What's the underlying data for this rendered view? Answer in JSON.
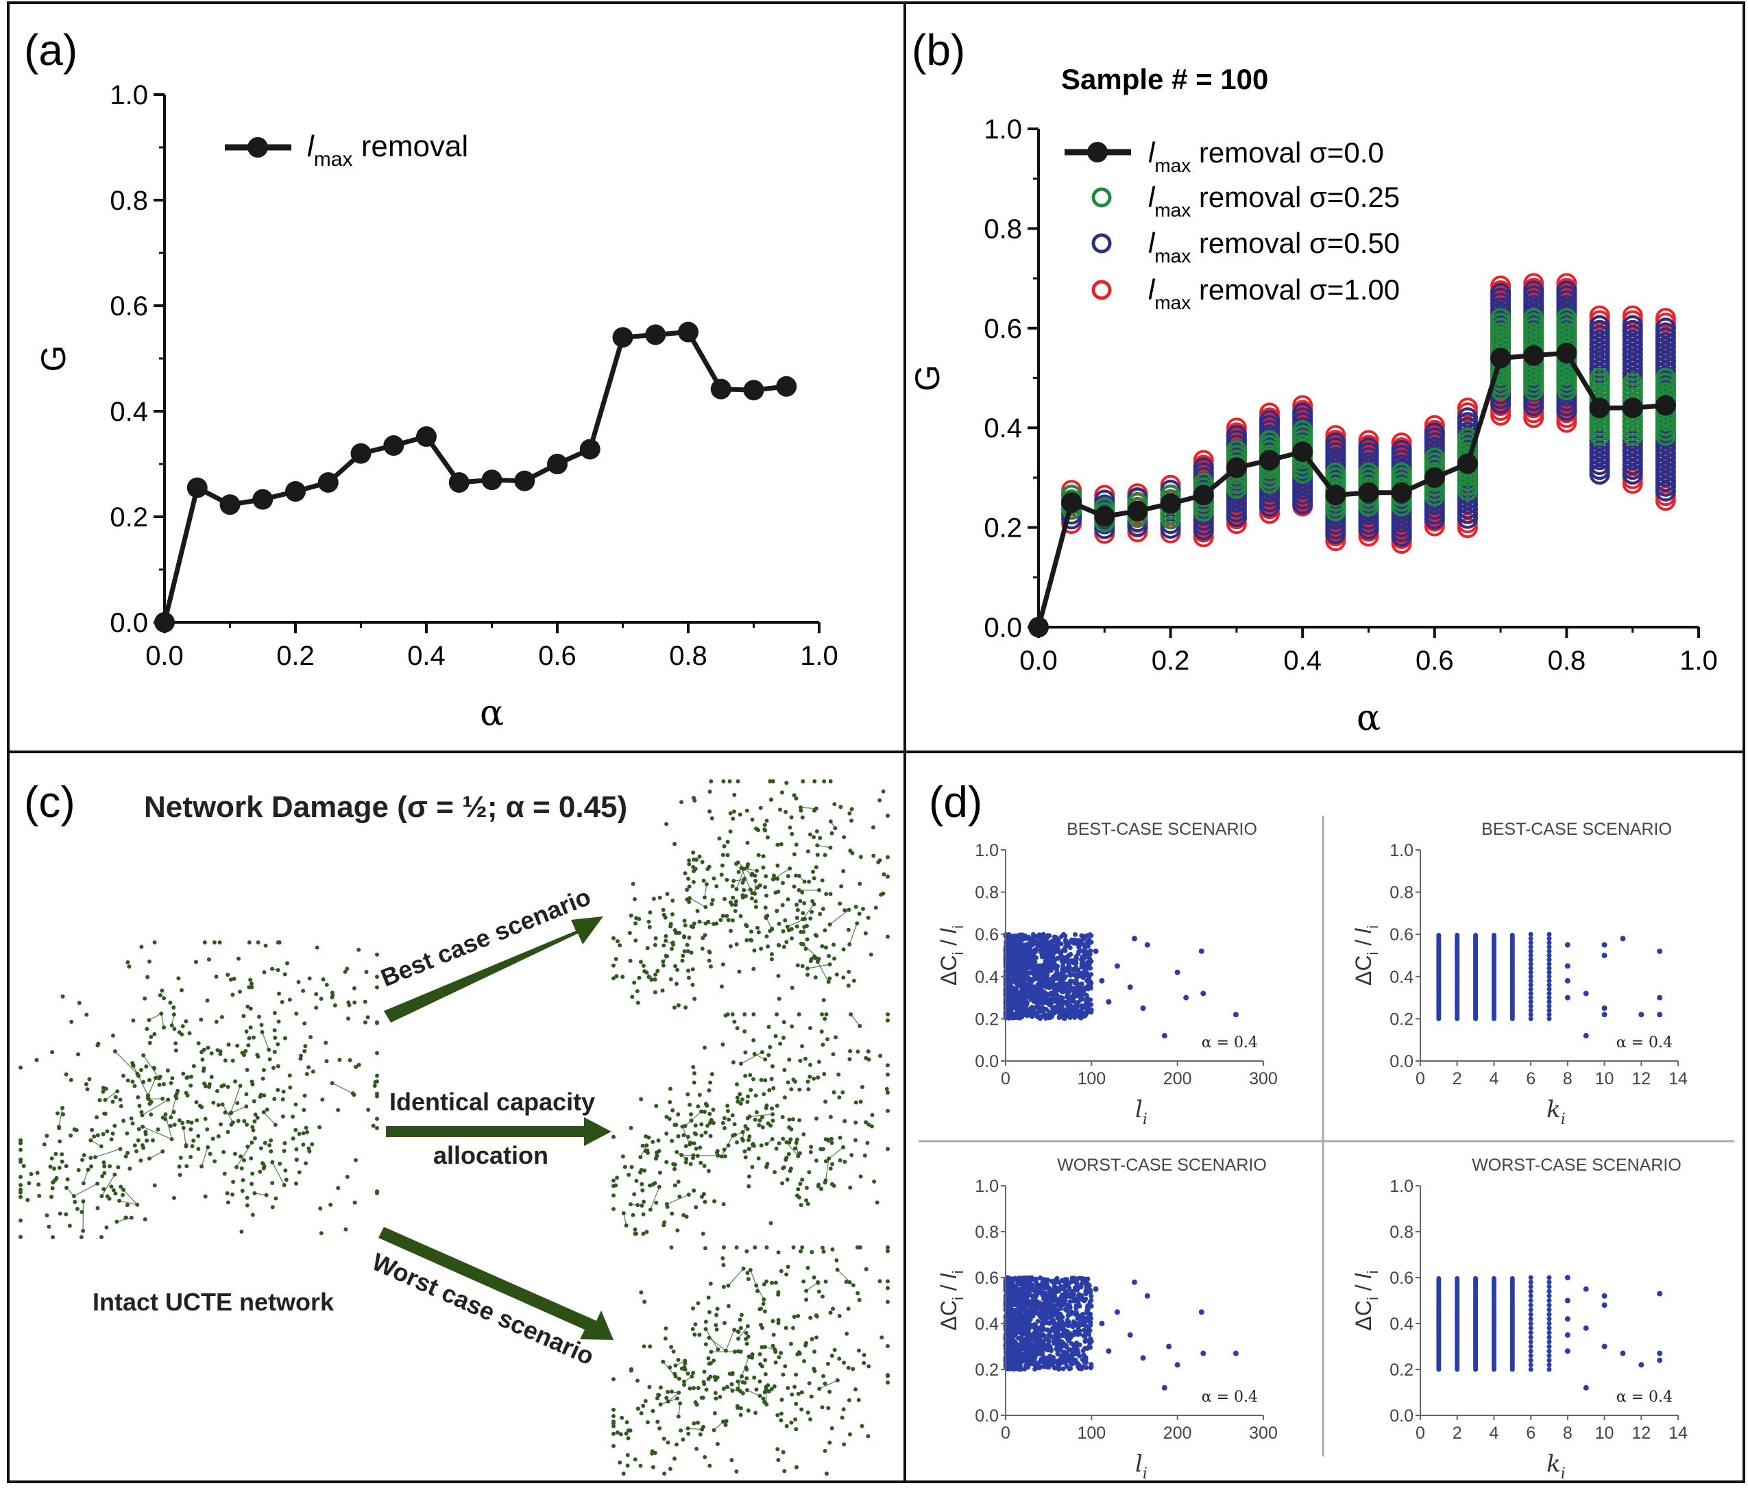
{
  "panels": {
    "a": {
      "label": "(a)",
      "legend": {
        "main": "l",
        "sub": "max",
        "rest": " removal"
      }
    },
    "b": {
      "label": "(b)",
      "sample": "Sample # = 100",
      "legend": [
        {
          "main": "l",
          "sub": "max",
          "rest": " removal σ=0.0",
          "color": "#1a1a1a"
        },
        {
          "main": "l",
          "sub": "max",
          "rest": " removal σ=0.25",
          "color": "#1e8a3a"
        },
        {
          "main": "l",
          "sub": "max",
          "rest": " removal σ=0.50",
          "color": "#2a2f8a"
        },
        {
          "main": "l",
          "sub": "max",
          "rest": " removal σ=1.00",
          "color": "#e8242a"
        }
      ]
    },
    "c": {
      "label": "(c)",
      "title": "Network Damage (σ = ½; α = 0.45)",
      "intact_label": "Intact UCTE network",
      "arrow_best": "Best case scenario",
      "arrow_identical_1": "Identical capacity",
      "arrow_identical_2": "allocation",
      "arrow_worst": "Worst case scenario",
      "net_color": "#2e5a1f",
      "arrow_color": "#2d5016"
    },
    "d": {
      "label": "(d)",
      "title_best": "BEST-CASE SCENARIO",
      "title_worst": "WORST-CASE SCENARIO",
      "ylabel_main": "ΔC",
      "ylabel_sub1": "i",
      "ylabel_mid": " / ",
      "ylabel_l": "l",
      "ylabel_sub2": "i",
      "xlabel_l": "l",
      "xlabel_k": "k",
      "xlabel_sub": "i",
      "annotation": "α = 0.4",
      "dot_color": "#2b3ea8"
    }
  },
  "chart_data": [
    {
      "id": "a",
      "type": "line",
      "title": "",
      "xlabel": "α",
      "ylabel": "G",
      "xlim": [
        0.0,
        1.0
      ],
      "ylim": [
        0.0,
        1.0
      ],
      "xticks": [
        "0.0",
        "0.2",
        "0.4",
        "0.6",
        "0.8",
        "1.0"
      ],
      "yticks": [
        "0.0",
        "0.2",
        "0.4",
        "0.6",
        "0.8",
        "1.0"
      ],
      "series": [
        {
          "name": "lmax removal",
          "x": [
            0.0,
            0.05,
            0.1,
            0.15,
            0.2,
            0.25,
            0.3,
            0.35,
            0.4,
            0.45,
            0.5,
            0.55,
            0.6,
            0.65,
            0.7,
            0.75,
            0.8,
            0.85,
            0.9,
            0.95
          ],
          "y": [
            0.0,
            0.255,
            0.223,
            0.233,
            0.248,
            0.265,
            0.32,
            0.335,
            0.352,
            0.265,
            0.27,
            0.268,
            0.3,
            0.328,
            0.54,
            0.545,
            0.55,
            0.442,
            0.44,
            0.447
          ]
        }
      ]
    },
    {
      "id": "b",
      "type": "line",
      "title": "Sample # = 100",
      "xlabel": "α",
      "ylabel": "G",
      "xlim": [
        0.0,
        1.0
      ],
      "ylim": [
        0.0,
        1.0
      ],
      "xticks": [
        "0.0",
        "0.2",
        "0.4",
        "0.6",
        "0.8",
        "1.0"
      ],
      "yticks": [
        "0.0",
        "0.2",
        "0.4",
        "0.6",
        "0.8",
        "1.0"
      ],
      "x": [
        0.05,
        0.1,
        0.15,
        0.2,
        0.25,
        0.3,
        0.35,
        0.4,
        0.45,
        0.5,
        0.55,
        0.6,
        0.65,
        0.7,
        0.75,
        0.8,
        0.85,
        0.9,
        0.95
      ],
      "ranges": [
        {
          "sigma": "1.00",
          "color": "#e8242a",
          "min": [
            0.205,
            0.18,
            0.19,
            0.185,
            0.18,
            0.205,
            0.225,
            0.235,
            0.165,
            0.18,
            0.165,
            0.2,
            0.19,
            0.42,
            0.415,
            0.41,
            0.3,
            0.28,
            0.25
          ],
          "max": [
            0.275,
            0.265,
            0.268,
            0.285,
            0.335,
            0.4,
            0.43,
            0.445,
            0.385,
            0.375,
            0.37,
            0.405,
            0.44,
            0.685,
            0.69,
            0.69,
            0.625,
            0.625,
            0.62
          ]
        },
        {
          "sigma": "0.50",
          "color": "#2a2f8a",
          "min": [
            0.215,
            0.19,
            0.2,
            0.195,
            0.19,
            0.215,
            0.235,
            0.245,
            0.18,
            0.19,
            0.18,
            0.21,
            0.21,
            0.44,
            0.435,
            0.425,
            0.305,
            0.3,
            0.27
          ],
          "max": [
            0.265,
            0.255,
            0.26,
            0.275,
            0.32,
            0.385,
            0.415,
            0.43,
            0.37,
            0.36,
            0.355,
            0.39,
            0.42,
            0.67,
            0.675,
            0.675,
            0.605,
            0.605,
            0.6
          ]
        },
        {
          "sigma": "0.25",
          "color": "#1e8a3a",
          "min": [
            0.23,
            0.205,
            0.215,
            0.215,
            0.225,
            0.275,
            0.285,
            0.3,
            0.23,
            0.235,
            0.235,
            0.26,
            0.27,
            0.47,
            0.47,
            0.47,
            0.38,
            0.375,
            0.375
          ],
          "max": [
            0.265,
            0.24,
            0.25,
            0.265,
            0.29,
            0.355,
            0.375,
            0.395,
            0.31,
            0.31,
            0.31,
            0.34,
            0.38,
            0.62,
            0.62,
            0.62,
            0.5,
            0.49,
            0.5
          ]
        }
      ],
      "series": [
        {
          "name": "lmax removal σ=0.0",
          "x": [
            0.0,
            0.05,
            0.1,
            0.15,
            0.2,
            0.25,
            0.3,
            0.35,
            0.4,
            0.45,
            0.5,
            0.55,
            0.6,
            0.65,
            0.7,
            0.75,
            0.8,
            0.85,
            0.9,
            0.95
          ],
          "y": [
            0.0,
            0.25,
            0.222,
            0.233,
            0.248,
            0.265,
            0.32,
            0.335,
            0.352,
            0.265,
            0.27,
            0.27,
            0.3,
            0.328,
            0.54,
            0.545,
            0.55,
            0.44,
            0.44,
            0.445
          ]
        }
      ]
    },
    {
      "id": "d1",
      "type": "scatter",
      "title": "BEST-CASE SCENARIO",
      "xlabel": "li",
      "ylabel": "ΔCi / li",
      "xlim": [
        0,
        300
      ],
      "ylim": [
        0.0,
        1.0
      ],
      "xticks": [
        "0",
        "100",
        "200",
        "300"
      ],
      "yticks": [
        "0.0",
        "0.2",
        "0.4",
        "0.6",
        "0.8",
        "1.0"
      ],
      "dense_region": {
        "x_max": 100,
        "y_min": 0.2,
        "y_max": 0.6
      },
      "outliers": [
        [
          150,
          0.58
        ],
        [
          165,
          0.55
        ],
        [
          130,
          0.45
        ],
        [
          145,
          0.35
        ],
        [
          120,
          0.28
        ],
        [
          160,
          0.25
        ],
        [
          185,
          0.12
        ],
        [
          200,
          0.42
        ],
        [
          210,
          0.3
        ],
        [
          228,
          0.52
        ],
        [
          230,
          0.32
        ],
        [
          268,
          0.22
        ],
        [
          105,
          0.52
        ],
        [
          112,
          0.38
        ]
      ],
      "annotation": "α = 0.4"
    },
    {
      "id": "d2",
      "type": "scatter",
      "title": "BEST-CASE SCENARIO",
      "xlabel": "ki",
      "ylabel": "ΔCi / li",
      "xlim": [
        0,
        14
      ],
      "ylim": [
        0.0,
        1.0
      ],
      "xticks": [
        "0",
        "2",
        "4",
        "6",
        "8",
        "10",
        "12",
        "14"
      ],
      "yticks": [
        "0.0",
        "0.2",
        "0.4",
        "0.6",
        "0.8",
        "1.0"
      ],
      "columns": [
        1,
        2,
        3,
        4,
        5,
        6,
        7
      ],
      "column_range": [
        0.2,
        0.6
      ],
      "outliers": [
        [
          8,
          0.55
        ],
        [
          8,
          0.45
        ],
        [
          8,
          0.38
        ],
        [
          8,
          0.3
        ],
        [
          9,
          0.32
        ],
        [
          9,
          0.12
        ],
        [
          10,
          0.25
        ],
        [
          10,
          0.22
        ],
        [
          10,
          0.5
        ],
        [
          10,
          0.55
        ],
        [
          11,
          0.58
        ],
        [
          12,
          0.22
        ],
        [
          13,
          0.52
        ],
        [
          13,
          0.3
        ],
        [
          13,
          0.22
        ]
      ],
      "annotation": "α = 0.4"
    },
    {
      "id": "d3",
      "type": "scatter",
      "title": "WORST-CASE SCENARIO",
      "xlabel": "li",
      "ylabel": "ΔCi / li",
      "xlim": [
        0,
        300
      ],
      "ylim": [
        0.0,
        1.0
      ],
      "xticks": [
        "0",
        "100",
        "200",
        "300"
      ],
      "yticks": [
        "0.0",
        "0.2",
        "0.4",
        "0.6",
        "0.8",
        "1.0"
      ],
      "dense_region": {
        "x_max": 100,
        "y_min": 0.2,
        "y_max": 0.6
      },
      "outliers": [
        [
          150,
          0.58
        ],
        [
          165,
          0.52
        ],
        [
          130,
          0.45
        ],
        [
          145,
          0.35
        ],
        [
          120,
          0.28
        ],
        [
          160,
          0.25
        ],
        [
          185,
          0.12
        ],
        [
          190,
          0.3
        ],
        [
          200,
          0.22
        ],
        [
          228,
          0.45
        ],
        [
          230,
          0.27
        ],
        [
          268,
          0.27
        ],
        [
          105,
          0.55
        ],
        [
          112,
          0.4
        ]
      ],
      "annotation": "α = 0.4"
    },
    {
      "id": "d4",
      "type": "scatter",
      "title": "WORST-CASE SCENARIO",
      "xlabel": "ki",
      "ylabel": "ΔCi / li",
      "xlim": [
        0,
        14
      ],
      "ylim": [
        0.0,
        1.0
      ],
      "xticks": [
        "0",
        "2",
        "4",
        "6",
        "8",
        "10",
        "12",
        "14"
      ],
      "yticks": [
        "0.0",
        "0.2",
        "0.4",
        "0.6",
        "0.8",
        "1.0"
      ],
      "columns": [
        1,
        2,
        3,
        4,
        5,
        6,
        7
      ],
      "column_range": [
        0.2,
        0.6
      ],
      "outliers": [
        [
          8,
          0.6
        ],
        [
          8,
          0.5
        ],
        [
          8,
          0.42
        ],
        [
          8,
          0.35
        ],
        [
          8,
          0.28
        ],
        [
          9,
          0.55
        ],
        [
          9,
          0.38
        ],
        [
          9,
          0.12
        ],
        [
          10,
          0.52
        ],
        [
          10,
          0.48
        ],
        [
          10,
          0.3
        ],
        [
          11,
          0.27
        ],
        [
          12,
          0.22
        ],
        [
          13,
          0.53
        ],
        [
          13,
          0.27
        ],
        [
          13,
          0.24
        ]
      ],
      "annotation": "α = 0.4"
    }
  ]
}
